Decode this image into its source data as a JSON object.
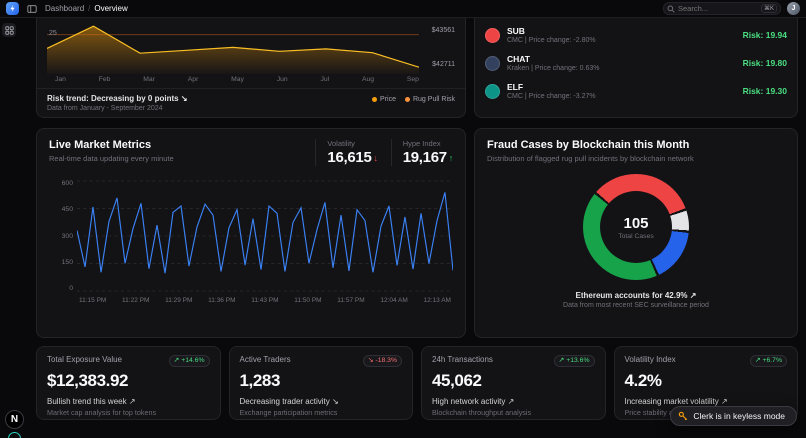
{
  "topbar": {
    "breadcrumb": {
      "section": "Dashboard",
      "separator": "/",
      "page": "Overview"
    },
    "search": {
      "placeholder": "Search...",
      "shortcut": "⌘K"
    },
    "avatar_initial": "J"
  },
  "risk_chart": {
    "left_axis_label": "25",
    "right_axis_labels": [
      "$43561",
      "$42711"
    ],
    "months": [
      "Jan",
      "Feb",
      "Mar",
      "Apr",
      "May",
      "Jun",
      "Jul",
      "Aug",
      "Sep"
    ],
    "footer": {
      "trend": "Risk trend: Decreasing by 0 points",
      "trend_dir": "down",
      "source": "Data from January - September 2024"
    },
    "legend": [
      {
        "label": "Price",
        "color": "#f59e0b"
      },
      {
        "label": "Rug Pull Risk",
        "color": "#fb923c"
      }
    ],
    "chart_data": {
      "type": "area",
      "x": [
        "Jan",
        "Feb",
        "Mar",
        "Apr",
        "May",
        "Jun",
        "Jul",
        "Aug",
        "Sep"
      ],
      "series": [
        {
          "name": "Price",
          "values": [
            43100,
            43561,
            43000,
            43060,
            43120,
            43040,
            43090,
            43010,
            42711
          ],
          "ylim": [
            42600,
            43700
          ]
        },
        {
          "name": "Rug Pull Risk",
          "values": [
            25,
            25,
            25,
            25,
            25,
            25,
            25,
            25,
            25
          ],
          "ylim": [
            0,
            35
          ]
        }
      ]
    }
  },
  "watchlist": {
    "items": [
      {
        "symbol": "SUB",
        "meta": "CMC | Price change: -2.80%",
        "risk_label": "Risk: 19.94",
        "icon_color": "#ef4444"
      },
      {
        "symbol": "CHAT",
        "meta": "Kraken | Price change: 0.63%",
        "risk_label": "Risk: 19.80",
        "icon_color": "#33415f"
      },
      {
        "symbol": "ELF",
        "meta": "CMC | Price change: -3.27%",
        "risk_label": "Risk: 19.30",
        "icon_color": "#0d9488"
      }
    ]
  },
  "live_metrics": {
    "title": "Live Market Metrics",
    "subtitle": "Real-time data updating every minute",
    "volatility": {
      "label": "Volatility",
      "value": "16,615",
      "direction": "down"
    },
    "hype": {
      "label": "Hype Index",
      "value": "19,167",
      "direction": "up"
    },
    "y_ticks": [
      "600",
      "450",
      "300",
      "150",
      "0"
    ],
    "x_ticks": [
      "11:15 PM",
      "11:22 PM",
      "11:29 PM",
      "11:36 PM",
      "11:43 PM",
      "11:50 PM",
      "11:57 PM",
      "12:04 AM",
      "12:13 AM"
    ],
    "chart_data": {
      "type": "line",
      "ylim": [
        0,
        600
      ],
      "values": [
        330,
        130,
        460,
        100,
        380,
        510,
        150,
        340,
        480,
        120,
        360,
        95,
        430,
        465,
        135,
        350,
        475,
        415,
        105,
        345,
        445,
        140,
        395,
        115,
        465,
        425,
        105,
        375,
        455,
        150,
        335,
        485,
        125,
        415,
        108,
        445,
        385,
        100,
        355,
        465,
        138,
        405,
        118,
        425,
        148,
        385,
        540,
        110
      ]
    }
  },
  "fraud": {
    "title": "Fraud Cases by Blockchain this Month",
    "subtitle": "Distribution of flagged rug pull incidents by blockchain network",
    "total_value": "105",
    "total_label": "Total Cases",
    "footer_main": "Ethereum accounts for 42.9%",
    "footer_dir": "up",
    "footer_sub": "Data from most recent SEC surveillance period",
    "chart_data": {
      "type": "pie",
      "segments": [
        {
          "label": "",
          "value": 33.5,
          "color": "#ef4444"
        },
        {
          "label": "",
          "value": 6.8,
          "color": "#e4e4e7"
        },
        {
          "label": "",
          "value": 16.8,
          "color": "#2563eb"
        },
        {
          "label": "Ethereum",
          "value": 42.9,
          "color": "#16a34a"
        }
      ]
    }
  },
  "stats": [
    {
      "label": "Total Exposure Value",
      "badge": "+14.6%",
      "badge_dir": "up",
      "value": "$12,383.92",
      "trend": "Bullish trend this week",
      "desc": "Market cap analysis for top tokens"
    },
    {
      "label": "Active Traders",
      "badge": "-18.3%",
      "badge_dir": "down",
      "value": "1,283",
      "trend": "Decreasing trader activity",
      "desc": "Exchange participation metrics"
    },
    {
      "label": "24h Transactions",
      "badge": "+13.6%",
      "badge_dir": "up",
      "value": "45,062",
      "trend": "High network activity",
      "desc": "Blockchain throughput analysis"
    },
    {
      "label": "Volatility Index",
      "badge": "+6.7%",
      "badge_dir": "up",
      "value": "4.2%",
      "trend": "Increasing market volatility",
      "desc": "Price stability assessment"
    }
  ],
  "toast": {
    "label": "Clerk is in keyless mode"
  },
  "dev_badge": {
    "label": "N"
  }
}
